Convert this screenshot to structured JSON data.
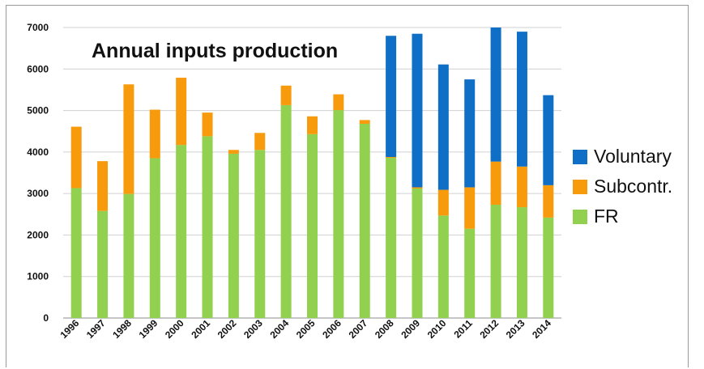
{
  "chart_data": {
    "type": "bar",
    "stacked": true,
    "title": "Annual inputs production",
    "xlabel": "",
    "ylabel": "",
    "ylim": [
      0,
      7000
    ],
    "yticks": [
      0,
      1000,
      2000,
      3000,
      4000,
      5000,
      6000,
      7000
    ],
    "grid": true,
    "legend_position": "right",
    "categories": [
      "1996",
      "1997",
      "1998",
      "1999",
      "2000",
      "2001",
      "2002",
      "2003",
      "2004",
      "2005",
      "2006",
      "2007",
      "2008",
      "2009",
      "2010",
      "2011",
      "2012",
      "2013",
      "2014"
    ],
    "series": [
      {
        "name": "FR",
        "color": "#92d050",
        "values": [
          3130,
          2580,
          2990,
          3850,
          4170,
          4380,
          3960,
          4050,
          5130,
          4430,
          5010,
          4680,
          3860,
          3120,
          2470,
          2150,
          2730,
          2670,
          2420
        ]
      },
      {
        "name": "Subcontr.",
        "color": "#f79a0c",
        "values": [
          1480,
          1200,
          2640,
          1170,
          1620,
          570,
          90,
          410,
          470,
          430,
          380,
          90,
          20,
          30,
          620,
          1000,
          1040,
          980,
          780
        ]
      },
      {
        "name": "Voluntary",
        "color": "#0f6fc6",
        "values": [
          0,
          0,
          0,
          0,
          0,
          0,
          0,
          0,
          0,
          0,
          0,
          0,
          2920,
          3700,
          3020,
          2600,
          3230,
          3250,
          2170
        ]
      }
    ],
    "legend_order": [
      "Voluntary",
      "Subcontr.",
      "FR"
    ]
  }
}
